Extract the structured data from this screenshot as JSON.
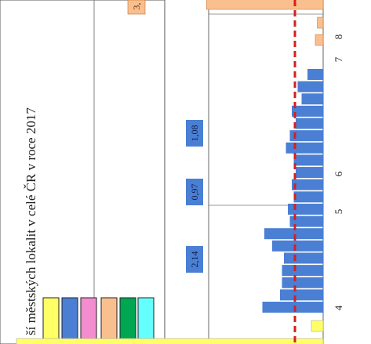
{
  "chart_data": {
    "type": "bar",
    "orientation": "rotated",
    "title": "ší městských lokalit v celé ČR v roce 2017",
    "x_ticks": [
      "4",
      "5",
      "6",
      "7",
      "8"
    ],
    "reference_line": {
      "color": "#d42020",
      "style": "dashed"
    },
    "blue_series": {
      "color": "#4a7fd4",
      "values": [
        3.1,
        2.2,
        2.1,
        2.1,
        2.0,
        2.6,
        3.0,
        1.7,
        1.8,
        1.5,
        1.6,
        1.4,
        1.5,
        1.9,
        1.7,
        1.4,
        1.6,
        1.1,
        1.3,
        0.8
      ]
    },
    "yellow_series": {
      "color": "#ffff66",
      "values": [
        3.4,
        0.6
      ]
    },
    "orange_series": {
      "color": "#f9bf8f",
      "values": [
        3.4,
        0.3,
        0.4
      ]
    },
    "data_labels": [
      "2,14",
      "0,97",
      "1,08"
    ],
    "orange_label": "3,",
    "legend_swatches": [
      "#ffff66",
      "#4a7fd4",
      "#f48cd0",
      "#f9bf8f",
      "#00a651",
      "#66ffff"
    ]
  }
}
